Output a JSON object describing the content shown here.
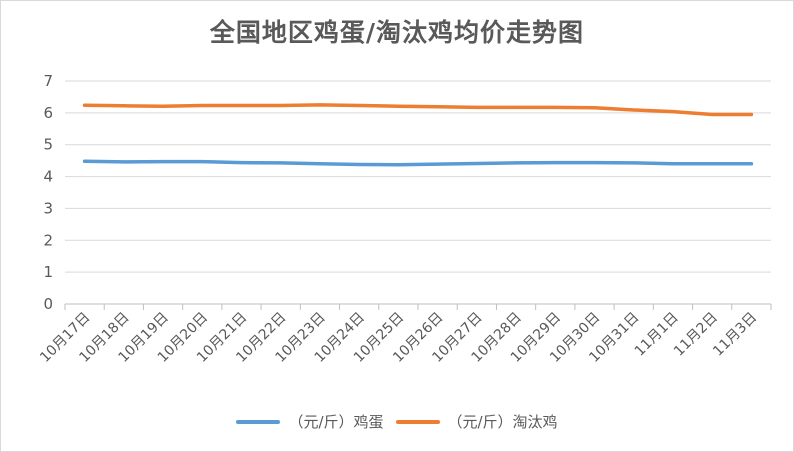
{
  "chart_data": {
    "type": "line",
    "title": "全国地区鸡蛋/淘汰鸡均价走势图",
    "categories": [
      "10月17日",
      "10月18日",
      "10月19日",
      "10月20日",
      "10月21日",
      "10月22日",
      "10月23日",
      "10月24日",
      "10月25日",
      "10月26日",
      "10月27日",
      "10月28日",
      "10月29日",
      "10月30日",
      "10月31日",
      "11月1日",
      "11月2日",
      "11月3日"
    ],
    "ylim": [
      0,
      7
    ],
    "yticks": [
      "0",
      "1",
      "2",
      "3",
      "4",
      "5",
      "6",
      "7"
    ],
    "grid": true,
    "legend_position": "bottom",
    "series": [
      {
        "name": "（元/斤）鸡蛋",
        "color": "#5b9bd5",
        "values": [
          4.48,
          4.46,
          4.47,
          4.47,
          4.44,
          4.43,
          4.4,
          4.38,
          4.37,
          4.39,
          4.41,
          4.43,
          4.44,
          4.44,
          4.43,
          4.4,
          4.4,
          4.4
        ]
      },
      {
        "name": "（元/斤）淘汰鸡",
        "color": "#ed7d31",
        "values": [
          6.24,
          6.22,
          6.21,
          6.23,
          6.23,
          6.23,
          6.25,
          6.23,
          6.21,
          6.19,
          6.17,
          6.17,
          6.17,
          6.16,
          6.09,
          6.04,
          5.95,
          5.95
        ]
      }
    ]
  }
}
